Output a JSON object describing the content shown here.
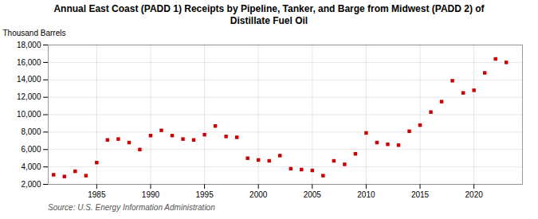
{
  "chart_data": {
    "type": "scatter",
    "title": "Annual East Coast (PADD 1) Receipts by Pipeline, Tanker, and Barge from Midwest (PADD 2) of\nDistillate Fuel Oil",
    "ylabel": "Thousand Barrels",
    "source": "Source: U.S. Energy Information Administration",
    "color": "#CC0000",
    "marker": "square",
    "grid": true,
    "x": [
      1981,
      1982,
      1983,
      1984,
      1985,
      1986,
      1987,
      1988,
      1989,
      1990,
      1991,
      1992,
      1993,
      1994,
      1995,
      1996,
      1997,
      1998,
      1999,
      2000,
      2001,
      2002,
      2003,
      2004,
      2005,
      2006,
      2007,
      2008,
      2009,
      2010,
      2011,
      2012,
      2013,
      2014,
      2015,
      2016,
      2017,
      2018,
      2019,
      2020,
      2021,
      2022,
      2023
    ],
    "values": [
      3100,
      2900,
      3500,
      3000,
      4500,
      7100,
      7200,
      6800,
      6000,
      7600,
      8200,
      7600,
      7200,
      7100,
      7700,
      8700,
      7500,
      7400,
      5000,
      4800,
      4700,
      5300,
      3800,
      3700,
      3600,
      3000,
      4700,
      4300,
      5500,
      7900,
      6800,
      6600,
      6500,
      8100,
      8800,
      10300,
      11500,
      13900,
      12500,
      12800,
      14800,
      16400,
      16000
    ],
    "xlim": [
      1980.5,
      2024.5
    ],
    "xticks": [
      1985,
      1990,
      1995,
      2000,
      2005,
      2010,
      2015,
      2020
    ],
    "ylim": [
      2000,
      18000
    ],
    "yticks": [
      {
        "value": 2000,
        "label": "2,000"
      },
      {
        "value": 4000,
        "label": "4,000"
      },
      {
        "value": 6000,
        "label": "6,000"
      },
      {
        "value": 8000,
        "label": "8,000"
      },
      {
        "value": 10000,
        "label": "10,000"
      },
      {
        "value": 12000,
        "label": "12,000"
      },
      {
        "value": 14000,
        "label": "14,000"
      },
      {
        "value": 16000,
        "label": "16,000"
      },
      {
        "value": 18000,
        "label": "18,000"
      }
    ]
  }
}
